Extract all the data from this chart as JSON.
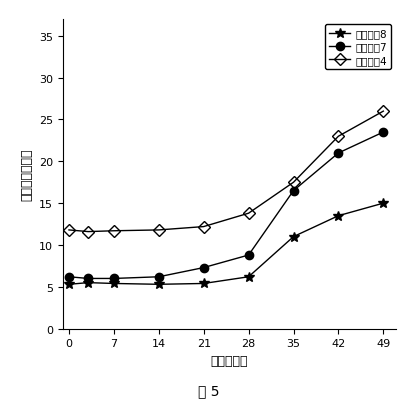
{
  "series": [
    {
      "label": "製剤番号8",
      "x": [
        0,
        3,
        7,
        14,
        21,
        28,
        35,
        42,
        49
      ],
      "y": [
        5.3,
        5.5,
        5.4,
        5.3,
        5.4,
        6.2,
        11.0,
        13.5,
        15.0
      ],
      "marker": "*",
      "color": "#000000",
      "linestyle": "-",
      "markersize": 7,
      "fillstyle": "full"
    },
    {
      "label": "製剤番号7",
      "x": [
        0,
        3,
        7,
        14,
        21,
        28,
        35,
        42,
        49
      ],
      "y": [
        6.2,
        6.0,
        6.0,
        6.2,
        7.3,
        8.8,
        16.5,
        21.0,
        23.5
      ],
      "marker": "o",
      "color": "#000000",
      "linestyle": "-",
      "markersize": 6,
      "fillstyle": "full"
    },
    {
      "label": "製剤番号4",
      "x": [
        0,
        3,
        7,
        14,
        21,
        28,
        35,
        42,
        49
      ],
      "y": [
        11.8,
        11.6,
        11.7,
        11.8,
        12.2,
        13.8,
        17.5,
        23.0,
        26.0
      ],
      "marker": "D",
      "color": "#000000",
      "linestyle": "-",
      "markersize": 6,
      "fillstyle": "none"
    }
  ],
  "xlabel": "時間（日）",
  "ylabel": "累積放出（％）",
  "xticks": [
    0,
    7,
    14,
    21,
    28,
    35,
    42,
    49
  ],
  "yticks": [
    0,
    5,
    10,
    15,
    20,
    25,
    30,
    35
  ],
  "ylim": [
    0,
    37
  ],
  "xlim": [
    -1,
    51
  ],
  "figure_title": "図 5",
  "title_fontsize": 10,
  "axis_fontsize": 9,
  "tick_fontsize": 8,
  "legend_fontsize": 7.5
}
